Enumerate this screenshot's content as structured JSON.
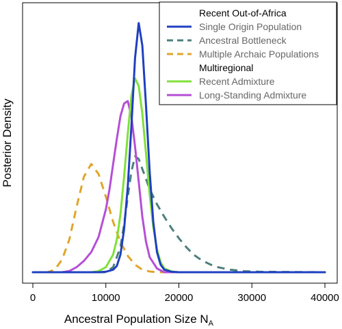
{
  "chart_data": {
    "type": "line",
    "title": "",
    "xlabel": "Ancestral Population Size N",
    "xlabel_subscript": "A",
    "ylabel": "Posterior Density",
    "xlim": [
      0,
      40000
    ],
    "xticks": [
      {
        "value": 0,
        "label": "0"
      },
      {
        "value": 10000,
        "label": "10000"
      },
      {
        "value": 20000,
        "label": "20000"
      },
      {
        "value": 30000,
        "label": "30000"
      },
      {
        "value": 40000,
        "label": "40000"
      }
    ],
    "ylim": [
      0,
      1.0
    ],
    "y_ticks_shown": false,
    "grid": false,
    "legend": {
      "placement": "top-right",
      "headings": [
        "Recent Out-of-Africa",
        "Multiregional"
      ]
    },
    "series": [
      {
        "name": "Single Origin Population",
        "group": "Recent Out-of-Africa",
        "color": "#1f3fbf",
        "dash": "solid",
        "x": [
          0,
          9000,
          10000,
          11000,
          11500,
          12000,
          12500,
          13000,
          13500,
          14000,
          14500,
          15000,
          15500,
          16000,
          16500,
          17000,
          17500,
          18000,
          19000,
          20000,
          40000
        ],
        "values": [
          0,
          0,
          0.002,
          0.01,
          0.025,
          0.07,
          0.17,
          0.34,
          0.58,
          0.85,
          0.99,
          0.9,
          0.66,
          0.4,
          0.2,
          0.08,
          0.03,
          0.01,
          0.002,
          0,
          0
        ]
      },
      {
        "name": "Ancestral Bottleneck",
        "group": "Recent Out-of-Africa",
        "color": "#4a7f7c",
        "dash": "dashed",
        "x": [
          0,
          10000,
          11000,
          12000,
          12500,
          13000,
          13500,
          14000,
          14500,
          15000,
          15500,
          16000,
          17000,
          18000,
          19000,
          20000,
          21000,
          22000,
          23000,
          24000,
          25000,
          27000,
          29000,
          31000,
          34000,
          40000
        ],
        "values": [
          0,
          0,
          0.02,
          0.1,
          0.19,
          0.3,
          0.4,
          0.46,
          0.45,
          0.41,
          0.37,
          0.33,
          0.27,
          0.22,
          0.175,
          0.135,
          0.1,
          0.07,
          0.05,
          0.035,
          0.022,
          0.01,
          0.004,
          0.002,
          0.001,
          0
        ]
      },
      {
        "name": "Multiple Archaic Populations",
        "group": "Recent Out-of-Africa",
        "color": "#e0a52a",
        "dash": "dashed",
        "x": [
          0,
          2000,
          3000,
          4000,
          5000,
          6000,
          7000,
          8000,
          9000,
          10000,
          11000,
          12000,
          13000,
          14000,
          15000,
          16000,
          17000,
          40000
        ],
        "values": [
          0,
          0,
          0.01,
          0.05,
          0.13,
          0.26,
          0.38,
          0.43,
          0.39,
          0.3,
          0.2,
          0.12,
          0.065,
          0.03,
          0.01,
          0.003,
          0,
          0
        ]
      },
      {
        "name": "Recent Admixture",
        "group": "Multiregional",
        "color": "#7fe03a",
        "dash": "solid",
        "x": [
          0,
          8000,
          9000,
          10000,
          11000,
          11500,
          12000,
          12500,
          13000,
          13500,
          14000,
          14500,
          15000,
          15500,
          16000,
          16500,
          17000,
          17500,
          18000,
          19000,
          20000,
          40000
        ],
        "values": [
          0,
          0,
          0.004,
          0.02,
          0.07,
          0.13,
          0.23,
          0.38,
          0.55,
          0.7,
          0.77,
          0.74,
          0.63,
          0.47,
          0.31,
          0.18,
          0.09,
          0.04,
          0.015,
          0.003,
          0,
          0
        ]
      },
      {
        "name": "Long-Standing Admixture",
        "group": "Multiregional",
        "color": "#b54ed6",
        "dash": "solid",
        "x": [
          0,
          4000,
          5000,
          6000,
          7000,
          8000,
          9000,
          10000,
          10500,
          11000,
          11500,
          12000,
          12500,
          13000,
          13500,
          14000,
          14500,
          15000,
          15500,
          16000,
          17000,
          18000,
          40000
        ],
        "values": [
          0,
          0,
          0.005,
          0.02,
          0.045,
          0.08,
          0.14,
          0.25,
          0.33,
          0.43,
          0.53,
          0.62,
          0.67,
          0.68,
          0.62,
          0.5,
          0.36,
          0.22,
          0.12,
          0.06,
          0.015,
          0,
          0
        ]
      }
    ]
  }
}
